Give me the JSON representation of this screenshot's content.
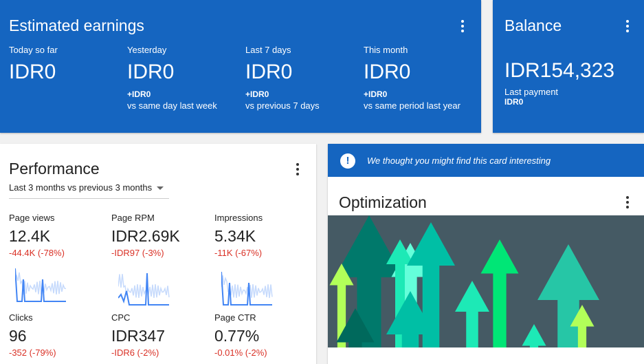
{
  "earnings": {
    "title": "Estimated earnings",
    "columns": [
      {
        "label": "Today so far",
        "value": "IDR0",
        "delta": "",
        "compare": ""
      },
      {
        "label": "Yesterday",
        "value": "IDR0",
        "delta": "+IDR0",
        "compare": "vs same day last week"
      },
      {
        "label": "Last 7 days",
        "value": "IDR0",
        "delta": "+IDR0",
        "compare": "vs previous 7 days"
      },
      {
        "label": "This month",
        "value": "IDR0",
        "delta": "+IDR0",
        "compare": "vs same period last year"
      }
    ]
  },
  "balance": {
    "title": "Balance",
    "value": "IDR154,323",
    "last_payment_label": "Last payment",
    "last_payment_value": "IDR0"
  },
  "performance": {
    "title": "Performance",
    "range": "Last 3 months vs previous 3 months",
    "metrics": [
      {
        "label": "Page views",
        "value": "12.4K",
        "change": "-44.4K (-78%)"
      },
      {
        "label": "Page RPM",
        "value": "IDR2.69K",
        "change": "-IDR97 (-3%)"
      },
      {
        "label": "Impressions",
        "value": "5.34K",
        "change": "-11K (-67%)"
      },
      {
        "label": "Clicks",
        "value": "96",
        "change": "-352 (-79%)"
      },
      {
        "label": "CPC",
        "value": "IDR347",
        "change": "-IDR6 (-2%)"
      },
      {
        "label": "Page CTR",
        "value": "0.77%",
        "change": "-0.01% (-2%)"
      }
    ]
  },
  "optimization": {
    "banner": "We thought you might find this card interesting",
    "title": "Optimization"
  },
  "colors": {
    "blue": "#1565c0",
    "red": "#d93025",
    "spark_dark": "#4285f4",
    "spark_light": "#c6dafc"
  }
}
